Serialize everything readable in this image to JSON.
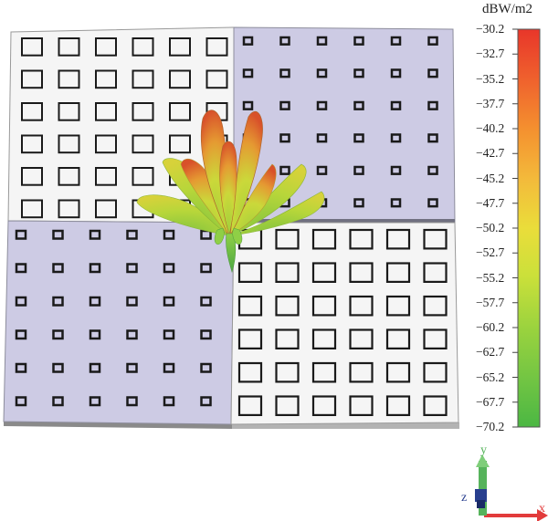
{
  "colorbar": {
    "unit": "dBW/m2",
    "ticks": [
      "-30.2",
      "-32.7",
      "-35.2",
      "-37.7",
      "-40.2",
      "-42.7",
      "-45.2",
      "-47.7",
      "-50.2",
      "-52.7",
      "-55.2",
      "-57.7",
      "-60.2",
      "-62.7",
      "-65.2",
      "-67.7",
      "-70.2"
    ],
    "gradient_colors": [
      "#e8362a",
      "#ee5a2c",
      "#f3852e",
      "#f6a838",
      "#f1c83e",
      "#e6e03a",
      "#c8dd3a",
      "#98d23e",
      "#6cc444",
      "#4cb843"
    ]
  },
  "axes": {
    "y": "y",
    "z": "z",
    "x": "x"
  },
  "colors": {
    "panel_white": "#f5f5f5",
    "panel_purple": "#cdcbe4",
    "hole_border": "#1a1a1a",
    "axis_x": "#e23b3b",
    "axis_y": "#56b35b",
    "axis_z": "#283f8f"
  }
}
